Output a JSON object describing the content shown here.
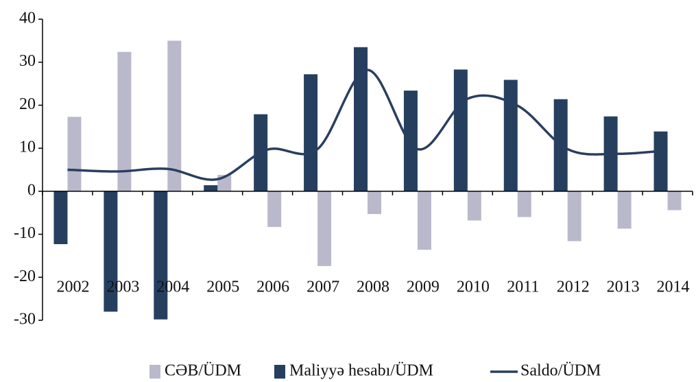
{
  "chart_data": {
    "type": "bar_line",
    "categories": [
      "2002",
      "2003",
      "2004",
      "2005",
      "2006",
      "2007",
      "2008",
      "2009",
      "2010",
      "2011",
      "2012",
      "2013",
      "2014"
    ],
    "series": [
      {
        "name": "CƏB/ÜDM",
        "type": "bar",
        "color": "#bab9cb",
        "values": [
          17.3,
          32.4,
          35.0,
          3.8,
          -8.3,
          -17.4,
          -5.3,
          -13.6,
          -6.8,
          -6.0,
          -11.6,
          -8.7,
          -4.4
        ]
      },
      {
        "name": "Maliyyə hesabı/ÜDM",
        "type": "bar",
        "color": "#263f5f",
        "values": [
          -12.3,
          -28.0,
          -29.8,
          1.4,
          17.9,
          27.2,
          33.5,
          23.4,
          28.3,
          25.9,
          21.4,
          17.4,
          13.9
        ]
      },
      {
        "name": "Saldo/ÜDM",
        "type": "line",
        "color": "#2a3e5f",
        "values": [
          5.0,
          4.6,
          5.2,
          2.8,
          9.7,
          9.8,
          28.2,
          9.8,
          21.5,
          19.9,
          9.8,
          8.7,
          9.5
        ]
      }
    ],
    "ylim": [
      -30,
      40
    ],
    "yticks": [
      -30,
      -20,
      -10,
      0,
      10,
      20,
      30,
      40
    ],
    "legend": "bottom"
  }
}
